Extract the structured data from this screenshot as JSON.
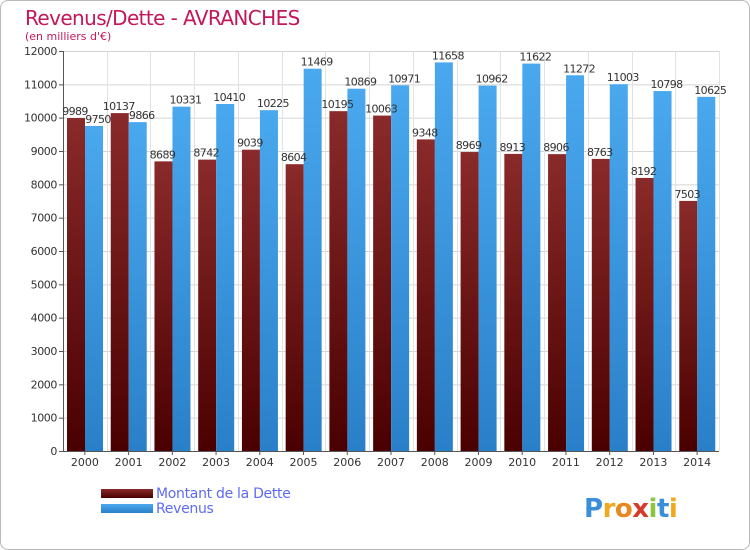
{
  "header": {
    "title": "Revenus/Dette - AVRANCHES",
    "subtitle": "(en milliers d'€)"
  },
  "legend": {
    "items": [
      {
        "label": "Montant de la Dette",
        "color": "#6b1414"
      },
      {
        "label": "Revenus",
        "color": "#3d9de6"
      }
    ]
  },
  "logo": {
    "text": "Proxiti"
  },
  "chart_data": {
    "type": "bar",
    "title": "Revenus/Dette - AVRANCHES",
    "subtitle": "(en milliers d'€)",
    "categories": [
      "2000",
      "2001",
      "2002",
      "2003",
      "2004",
      "2005",
      "2006",
      "2007",
      "2008",
      "2009",
      "2010",
      "2011",
      "2012",
      "2013",
      "2014"
    ],
    "series": [
      {
        "name": "Montant de la Dette",
        "color": "#7a1c1c",
        "values": [
          9989,
          10137,
          8689,
          8742,
          9039,
          8604,
          10195,
          10063,
          9348,
          8969,
          8913,
          8906,
          8763,
          8192,
          7503
        ],
        "labels": [
          "9989",
          "10137",
          "8689",
          "8742",
          "9039",
          "8604",
          "10195",
          "10063",
          "9348",
          "8969",
          "8913",
          "8906",
          "8763",
          "8192",
          "7503"
        ]
      },
      {
        "name": "Revenus",
        "color": "#3d9de6",
        "values": [
          9750,
          9866,
          10331,
          10410,
          10225,
          11469,
          10869,
          10971,
          11658,
          10962,
          11622,
          11272,
          11003,
          10798,
          10625
        ],
        "labels": [
          "9750",
          "9866",
          "10331",
          "10410",
          "10225",
          "11469",
          "10869",
          "10971",
          "11658",
          "10962",
          "11622",
          "11272",
          "11003",
          "10798",
          "10625"
        ]
      }
    ],
    "ylim": [
      0,
      12000
    ],
    "yticks": [
      0,
      1000,
      2000,
      3000,
      4000,
      5000,
      6000,
      7000,
      8000,
      9000,
      10000,
      11000,
      12000
    ],
    "grid": true,
    "legend_position": "bottom-left"
  }
}
